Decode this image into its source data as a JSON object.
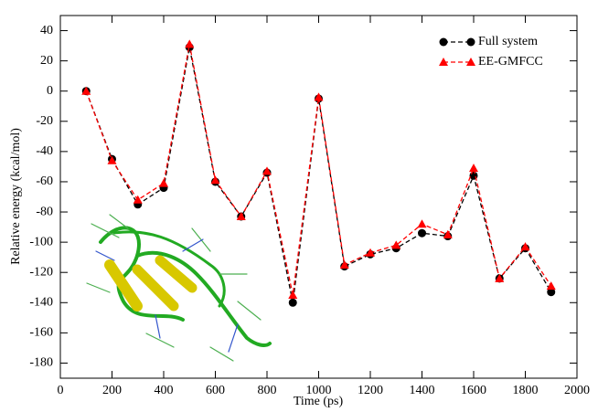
{
  "chart_data": {
    "type": "line",
    "xlabel": "Time (ps)",
    "ylabel": "Relative energy (kcal/mol)",
    "x": [
      100,
      200,
      300,
      400,
      500,
      600,
      700,
      800,
      900,
      1000,
      1100,
      1200,
      1300,
      1400,
      1500,
      1600,
      1700,
      1800,
      1900
    ],
    "series": [
      {
        "name": "Full system",
        "color": "#000000",
        "marker": "circle",
        "values": [
          0,
          -45,
          -75,
          -64,
          29,
          -60,
          -83,
          -54,
          -140,
          -5,
          -116,
          -108,
          -104,
          -94,
          -96,
          -56,
          -124,
          -104,
          -133
        ]
      },
      {
        "name": "EE-GMFCC",
        "color": "#ff0000",
        "marker": "triangle",
        "values": [
          0,
          -46,
          -72,
          -61,
          31,
          -59,
          -83,
          -53,
          -135,
          -4,
          -115,
          -107,
          -102,
          -88,
          -95,
          -51,
          -124,
          -103,
          -129
        ]
      }
    ],
    "xlim": [
      0,
      2000
    ],
    "ylim": [
      -190,
      50
    ],
    "xticks": [
      0,
      200,
      400,
      600,
      800,
      1000,
      1200,
      1400,
      1600,
      1800,
      2000
    ],
    "yticks": [
      -180,
      -160,
      -140,
      -120,
      -100,
      -80,
      -60,
      -40,
      -20,
      0,
      20,
      40
    ],
    "legend": "upper right"
  }
}
